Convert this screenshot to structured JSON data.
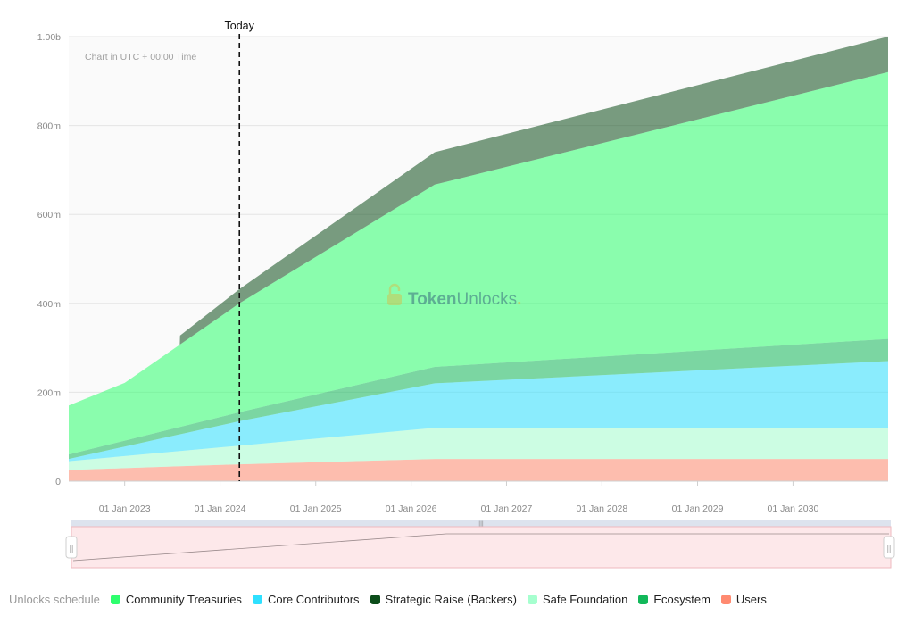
{
  "chart_data": {
    "type": "area",
    "stacked": true,
    "note": "Chart in UTC + 00:00 Time",
    "watermark": {
      "brand_bold": "Token",
      "brand_light": "Unlocks",
      "dot": "."
    },
    "today_label": "Today",
    "today_date": "2024-03-15",
    "y_ticks": [
      "0",
      "200m",
      "400m",
      "600m",
      "800m",
      "1.00b"
    ],
    "ylim": [
      0,
      1000000000
    ],
    "x_ticks": [
      "01 Jan 2023",
      "01 Jan 2024",
      "01 Jan 2025",
      "01 Jan 2026",
      "01 Jan 2027",
      "01 Jan 2028",
      "01 Jan 2029",
      "01 Jan 2030"
    ],
    "x_tick_dates": [
      "2023-01-01",
      "2024-01-01",
      "2025-01-01",
      "2026-01-01",
      "2027-01-01",
      "2028-01-01",
      "2029-01-01",
      "2030-01-01"
    ],
    "xlim": [
      "2022-06-01",
      "2030-12-31"
    ],
    "grid": "horizontal",
    "legend_title": "Unlocks schedule",
    "legend_position": "bottom",
    "series": [
      {
        "name": "Users",
        "color": "#ff8a70",
        "points": [
          [
            "2022-06-01",
            25000000
          ],
          [
            "2024-03-15",
            38000000
          ],
          [
            "2026-04-01",
            50000000
          ],
          [
            "2030-12-31",
            50000000
          ]
        ]
      },
      {
        "name": "Safe Foundation",
        "color": "#a6ffcf",
        "points": [
          [
            "2022-06-01",
            20000000
          ],
          [
            "2024-03-15",
            42000000
          ],
          [
            "2026-04-01",
            70000000
          ],
          [
            "2030-12-31",
            70000000
          ]
        ]
      },
      {
        "name": "Core Contributors",
        "color": "#2ee0ff",
        "points": [
          [
            "2022-06-01",
            5000000
          ],
          [
            "2024-03-15",
            55000000
          ],
          [
            "2026-04-01",
            100000000
          ],
          [
            "2030-12-31",
            150000000
          ]
        ]
      },
      {
        "name": "Ecosystem",
        "color": "#12b85a",
        "points": [
          [
            "2022-06-01",
            10000000
          ],
          [
            "2024-03-15",
            20000000
          ],
          [
            "2026-04-01",
            37000000
          ],
          [
            "2030-12-31",
            50000000
          ]
        ]
      },
      {
        "name": "Community Treasuries",
        "color": "#2eff6e",
        "points": [
          [
            "2022-06-01",
            110000000
          ],
          [
            "2023-01-01",
            130000000
          ],
          [
            "2024-03-15",
            245000000
          ],
          [
            "2026-04-01",
            410000000
          ],
          [
            "2030-12-31",
            600000000
          ]
        ]
      },
      {
        "name": "Strategic Raise (Backers)",
        "color": "#0c4d1a",
        "points": [
          [
            "2022-06-01",
            0
          ],
          [
            "2023-07-31",
            0
          ],
          [
            "2023-08-01",
            20000000
          ],
          [
            "2024-03-15",
            32000000
          ],
          [
            "2026-04-01",
            73000000
          ],
          [
            "2030-12-31",
            80000000
          ]
        ]
      }
    ],
    "legend_order": [
      "Community Treasuries",
      "Core Contributors",
      "Strategic Raise (Backers)",
      "Safe Foundation",
      "Ecosystem",
      "Users"
    ]
  }
}
